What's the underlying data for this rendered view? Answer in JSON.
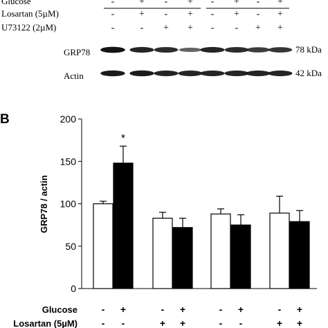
{
  "blot": {
    "row_labels": [
      "Glucose",
      "Losartan (5µM)",
      "U73122 (2µM)"
    ],
    "row_signs": [
      [
        "-",
        "+",
        "-",
        "+",
        "-",
        "+",
        "-",
        "+"
      ],
      [
        "-",
        "+",
        "-",
        "+",
        "-",
        "+",
        "-",
        "+"
      ],
      [
        "-",
        "-",
        "+",
        "+",
        "-",
        "-",
        "+",
        "+"
      ]
    ],
    "bands": [
      {
        "label": "GRP78",
        "size": "78 kDa",
        "intensities": [
          0.95,
          0.85,
          0.8,
          0.45,
          0.85,
          0.8,
          0.7,
          0.75
        ]
      },
      {
        "label": "Actin",
        "size": "42 kDa",
        "intensities": [
          0.9,
          0.9,
          0.85,
          0.85,
          0.85,
          0.85,
          0.85,
          0.85
        ]
      }
    ]
  },
  "panel_b_letter": "B",
  "chart_data": {
    "type": "bar",
    "ylabel": "GRP78 / actin",
    "ylim": [
      0,
      200
    ],
    "yticks": [
      0,
      50,
      100,
      150,
      200
    ],
    "groups": [
      {
        "white": 100,
        "white_err": 3,
        "black": 148,
        "black_err": 20,
        "black_annotation": "*"
      },
      {
        "white": 83,
        "white_err": 7,
        "black": 72,
        "black_err": 11,
        "black_annotation": ""
      },
      {
        "white": 88,
        "white_err": 6,
        "black": 75,
        "black_err": 12,
        "black_annotation": ""
      },
      {
        "white": 89,
        "white_err": 20,
        "black": 79,
        "black_err": 13,
        "black_annotation": ""
      }
    ],
    "x_rows": [
      {
        "label": "Glucose",
        "signs": [
          "-",
          "+",
          "-",
          "+",
          "-",
          "+",
          "-",
          "+"
        ]
      },
      {
        "label": "Losartan (5µM)",
        "signs": [
          "-",
          "-",
          "+",
          "+",
          "-",
          "-",
          "+",
          "+"
        ]
      }
    ]
  }
}
